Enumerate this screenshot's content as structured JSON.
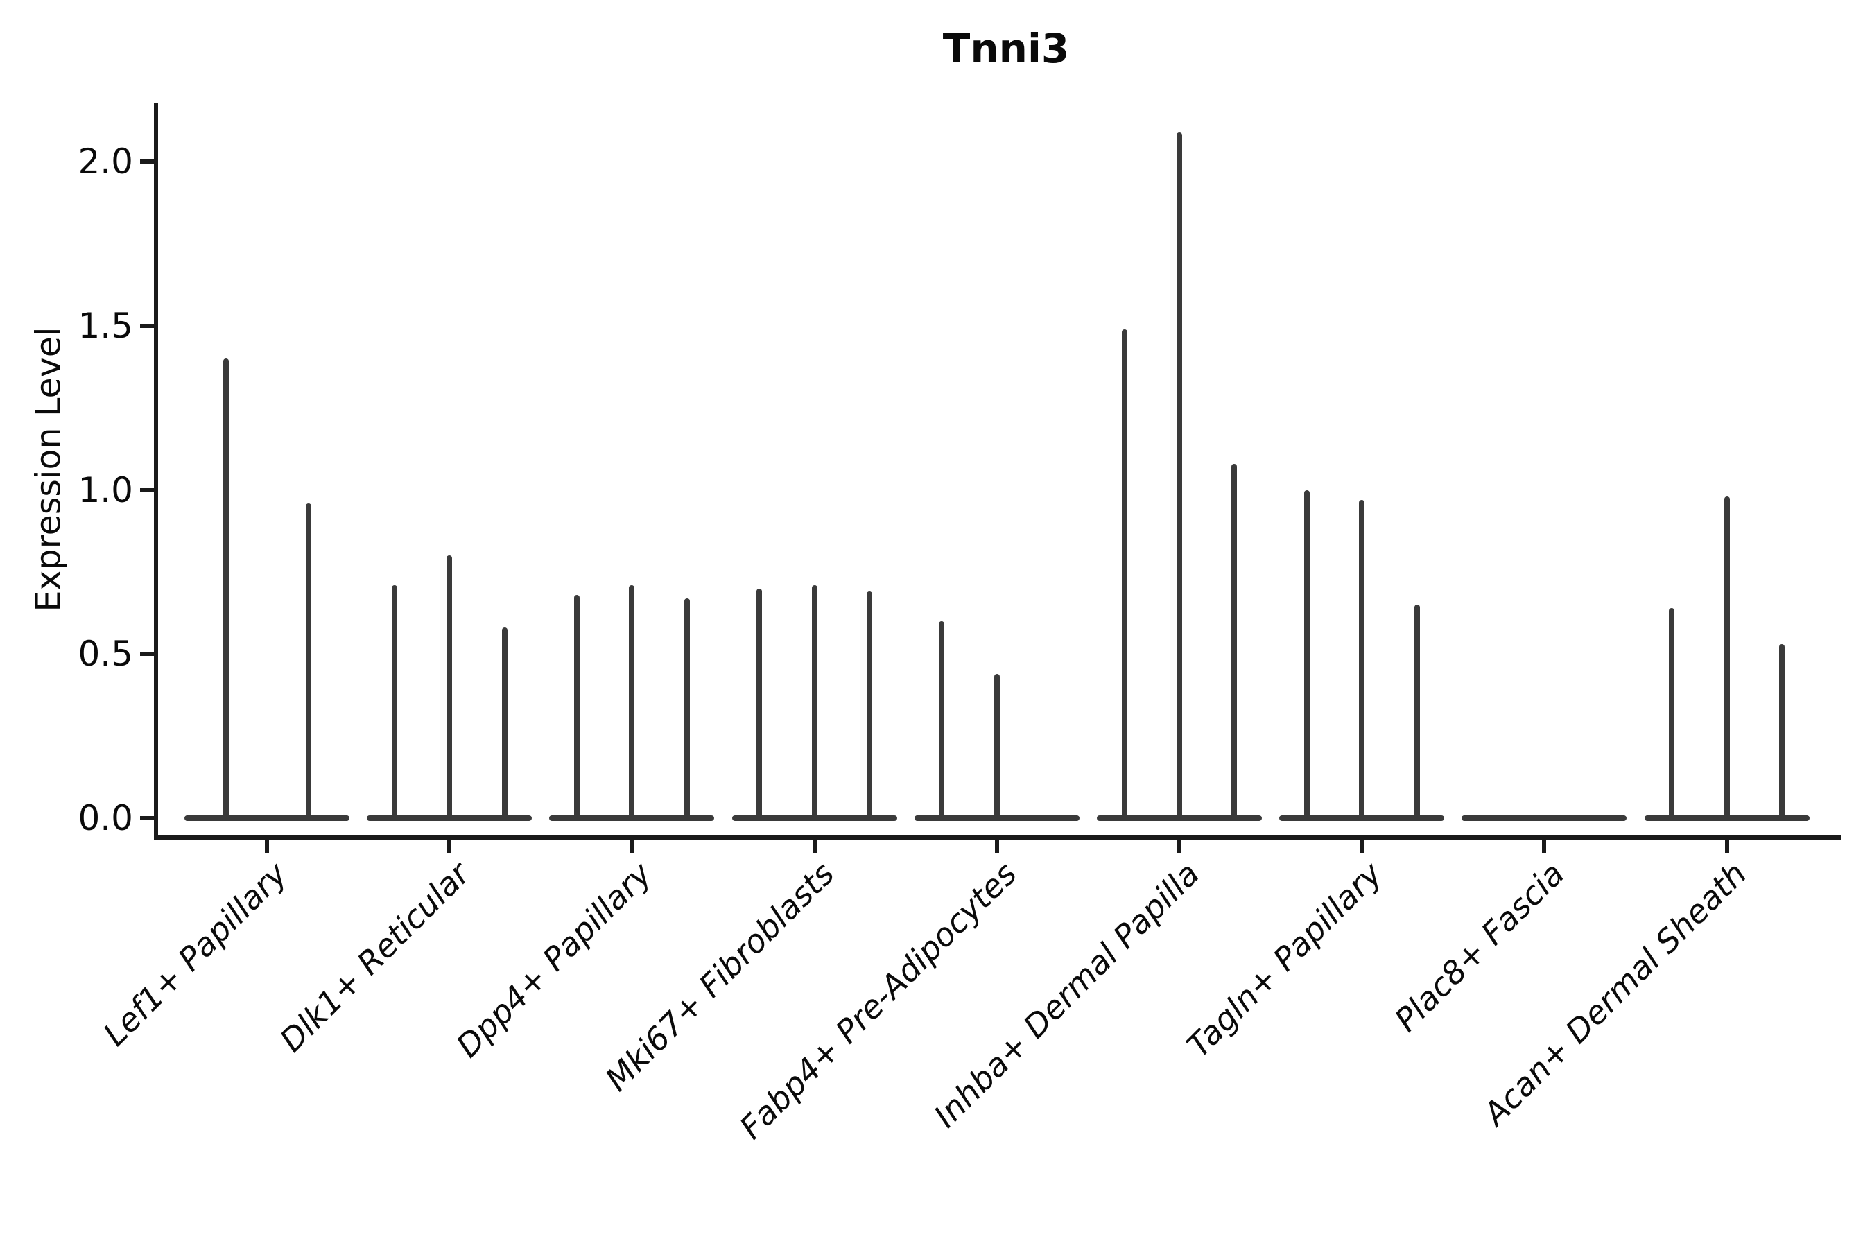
{
  "chart_data": {
    "type": "violin",
    "title": "Tnni3",
    "xlabel": "",
    "ylabel": "Expression Level",
    "yticks": [
      "0.0",
      "0.5",
      "1.0",
      "1.5",
      "2.0"
    ],
    "ytick_values": [
      0.0,
      0.5,
      1.0,
      1.5,
      2.0
    ],
    "ylim": [
      -0.06,
      2.23
    ],
    "grid": "off",
    "legend": "none",
    "violin_color": "#3a3a3a",
    "axis_color": "#1a1a1a",
    "description": "Violin plot of Tnni3 expression; each cell-type category holds 2-3 near-zero-width violins (density collapsed at 0 with a thin spike up to the max expression value).",
    "categories": [
      "Lef1+ Papillary",
      "Dlk1+ Reticular",
      "Dpp4+ Papillary",
      "Mki67+ Fibroblasts",
      "Fabp4+ Pre-Adipocytes",
      "Inhba+ Dermal Papilla",
      "Tagln+ Papillary",
      "Plac8+ Fascia",
      "Acan+ Dermal Sheath"
    ],
    "groups": [
      {
        "category": "Lef1+ Papillary",
        "violin_maxima": [
          1.4,
          0.96
        ]
      },
      {
        "category": "Dlk1+ Reticular",
        "violin_maxima": [
          0.71,
          0.8,
          0.58
        ]
      },
      {
        "category": "Dpp4+ Papillary",
        "violin_maxima": [
          0.68,
          0.71,
          0.67
        ]
      },
      {
        "category": "Mki67+ Fibroblasts",
        "violin_maxima": [
          0.7,
          0.71,
          0.69
        ]
      },
      {
        "category": "Fabp4+ Pre-Adipocytes",
        "violin_maxima": [
          0.6,
          0.44,
          0.0
        ]
      },
      {
        "category": "Inhba+ Dermal Papilla",
        "violin_maxima": [
          1.49,
          2.09,
          1.08
        ]
      },
      {
        "category": "Tagln+ Papillary",
        "violin_maxima": [
          1.0,
          0.97,
          0.65
        ]
      },
      {
        "category": "Plac8+ Fascia",
        "violin_maxima": [
          0.0,
          0.0,
          0.0
        ]
      },
      {
        "category": "Acan+ Dermal Sheath",
        "violin_maxima": [
          0.64,
          0.98,
          0.53
        ]
      }
    ]
  }
}
